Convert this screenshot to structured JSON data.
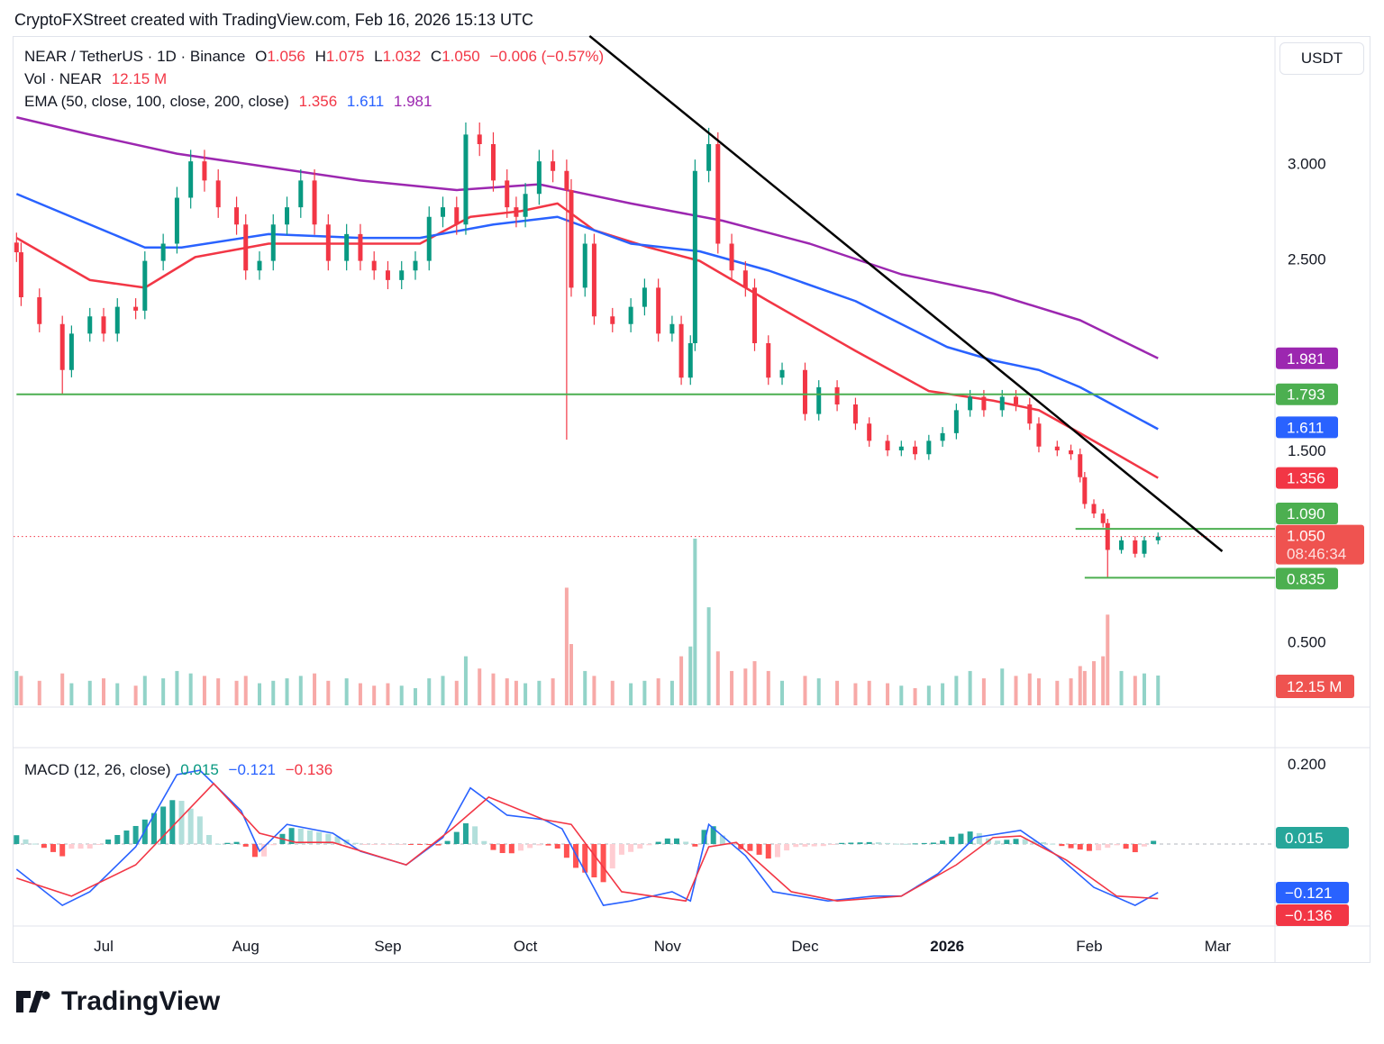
{
  "header": "CryptoFXStreet created with TradingView.com, Feb 16, 2026 15:13 UTC",
  "legend": {
    "symbol": "NEAR / TetherUS · 1D · Binance",
    "o_label": "O",
    "o": "1.056",
    "h_label": "H",
    "h": "1.075",
    "l_label": "L",
    "l": "1.032",
    "c_label": "C",
    "c": "1.050",
    "change": "−0.006 (−0.57%)",
    "vol_label": "Vol · NEAR",
    "vol": "12.15 M",
    "ema_label": "EMA (50, close, 100, close, 200, close)",
    "ema50": "1.356",
    "ema100": "1.611",
    "ema200": "1.981",
    "macd_label": "MACD (12, 26, close)",
    "macd_hist": "0.015",
    "macd_line": "−0.121",
    "macd_signal": "−0.136"
  },
  "currency_button": "USDT",
  "brand": "TradingView",
  "colors": {
    "up": "#089981",
    "down": "#f23645",
    "ema50": "#f23645",
    "ema100": "#2962ff",
    "ema200": "#9c27b0",
    "level": "#4caf50",
    "trendline": "#000000",
    "vol_up": "#92d3c8",
    "vol_down": "#f7a9a7"
  },
  "chart_data": {
    "type": "candlestick",
    "price_scale": "linear",
    "price_ticks": [
      "3.000",
      "2.500",
      "1.500",
      "0.500"
    ],
    "ylim": [
      0.2,
      3.8
    ],
    "time_ticks": [
      [
        "2025-07-01",
        "Jul"
      ],
      [
        "2025-08-01",
        "Aug"
      ],
      [
        "2025-09-01",
        "Sep"
      ],
      [
        "2025-10-01",
        "Oct"
      ],
      [
        "2025-11-01",
        "Nov"
      ],
      [
        "2025-12-01",
        "Dec"
      ],
      [
        "2026-01-01",
        "2026"
      ],
      [
        "2026-02-01",
        "Feb"
      ],
      [
        "2026-03-01",
        "Mar"
      ]
    ],
    "candles_columns": [
      "date",
      "close",
      "volume_M",
      "wick_extreme"
    ],
    "candles": [
      [
        "2025-06-12",
        2.535,
        14
      ],
      [
        "2025-06-13",
        2.3,
        12
      ],
      [
        "2025-06-17",
        2.16,
        10
      ],
      [
        "2025-06-22",
        1.92,
        13,
        1.793
      ],
      [
        "2025-06-24",
        2.11,
        9
      ],
      [
        "2025-06-28",
        2.2,
        10
      ],
      [
        "2025-07-01",
        2.11,
        11
      ],
      [
        "2025-07-04",
        2.25,
        9
      ],
      [
        "2025-07-08",
        2.23,
        8
      ],
      [
        "2025-07-10",
        2.49,
        12
      ],
      [
        "2025-07-14",
        2.58,
        11
      ],
      [
        "2025-07-17",
        2.82,
        14
      ],
      [
        "2025-07-20",
        3.01,
        13
      ],
      [
        "2025-07-23",
        2.91,
        12
      ],
      [
        "2025-07-26",
        2.77,
        11
      ],
      [
        "2025-07-30",
        2.68,
        10
      ],
      [
        "2025-08-01",
        2.44,
        12
      ],
      [
        "2025-08-04",
        2.49,
        9
      ],
      [
        "2025-08-07",
        2.68,
        10
      ],
      [
        "2025-08-10",
        2.77,
        11
      ],
      [
        "2025-08-13",
        2.91,
        12
      ],
      [
        "2025-08-16",
        2.68,
        13
      ],
      [
        "2025-08-19",
        2.49,
        10
      ],
      [
        "2025-08-23",
        2.63,
        11
      ],
      [
        "2025-08-26",
        2.49,
        9
      ],
      [
        "2025-08-29",
        2.44,
        8
      ],
      [
        "2025-09-01",
        2.39,
        9
      ],
      [
        "2025-09-04",
        2.44,
        8
      ],
      [
        "2025-09-07",
        2.49,
        7
      ],
      [
        "2025-09-10",
        2.72,
        11
      ],
      [
        "2025-09-13",
        2.77,
        12
      ],
      [
        "2025-09-16",
        2.68,
        10
      ],
      [
        "2025-09-18",
        3.15,
        20
      ],
      [
        "2025-09-21",
        3.1,
        15
      ],
      [
        "2025-09-24",
        2.91,
        13
      ],
      [
        "2025-09-27",
        2.77,
        11
      ],
      [
        "2025-09-29",
        2.72,
        10
      ],
      [
        "2025-10-01",
        2.84,
        9
      ],
      [
        "2025-10-04",
        3.01,
        10
      ],
      [
        "2025-10-07",
        2.96,
        11
      ],
      [
        "2025-10-10",
        2.86,
        48,
        1.556
      ],
      [
        "2025-10-11",
        2.35,
        25
      ],
      [
        "2025-10-14",
        2.58,
        14
      ],
      [
        "2025-10-16",
        2.2,
        12
      ],
      [
        "2025-10-20",
        2.16,
        10
      ],
      [
        "2025-10-24",
        2.25,
        9
      ],
      [
        "2025-10-27",
        2.35,
        10
      ],
      [
        "2025-10-30",
        2.11,
        11
      ],
      [
        "2025-11-02",
        2.16,
        10
      ],
      [
        "2025-11-04",
        1.88,
        20
      ],
      [
        "2025-11-06",
        2.06,
        24
      ],
      [
        "2025-11-07",
        2.96,
        68
      ],
      [
        "2025-11-10",
        3.1,
        40,
        3.185
      ],
      [
        "2025-11-12",
        2.58,
        22
      ],
      [
        "2025-11-15",
        2.44,
        14
      ],
      [
        "2025-11-18",
        2.35,
        15
      ],
      [
        "2025-11-20",
        2.06,
        18
      ],
      [
        "2025-11-23",
        1.88,
        14
      ],
      [
        "2025-11-26",
        1.92,
        10
      ],
      [
        "2025-12-01",
        1.69,
        12
      ],
      [
        "2025-12-04",
        1.83,
        11
      ],
      [
        "2025-12-08",
        1.74,
        10
      ],
      [
        "2025-12-12",
        1.64,
        9
      ],
      [
        "2025-12-15",
        1.55,
        10
      ],
      [
        "2025-12-19",
        1.5,
        9
      ],
      [
        "2025-12-22",
        1.52,
        8
      ],
      [
        "2025-12-25",
        1.48,
        7
      ],
      [
        "2025-12-28",
        1.55,
        8
      ],
      [
        "2025-12-31",
        1.59,
        9
      ],
      [
        "2026-01-03",
        1.71,
        12
      ],
      [
        "2026-01-06",
        1.78,
        14
      ],
      [
        "2026-01-09",
        1.71,
        11
      ],
      [
        "2026-01-13",
        1.78,
        15
      ],
      [
        "2026-01-16",
        1.74,
        12
      ],
      [
        "2026-01-19",
        1.64,
        13
      ],
      [
        "2026-01-21",
        1.52,
        11
      ],
      [
        "2026-01-25",
        1.5,
        10
      ],
      [
        "2026-01-28",
        1.48,
        11
      ],
      [
        "2026-01-30",
        1.36,
        16
      ],
      [
        "2026-01-31",
        1.22,
        14
      ],
      [
        "2026-02-02",
        1.17,
        18
      ],
      [
        "2026-02-04",
        1.12,
        20
      ],
      [
        "2026-02-05",
        0.98,
        37,
        0.835
      ],
      [
        "2026-02-08",
        1.03,
        14
      ],
      [
        "2026-02-11",
        0.96,
        12
      ],
      [
        "2026-02-13",
        1.03,
        13
      ],
      [
        "2026-02-16",
        1.05,
        12.15
      ]
    ],
    "ema_series": [
      {
        "name": "EMA 50",
        "color": "#f23645",
        "points": [
          [
            "2025-06-12",
            2.61
          ],
          [
            "2025-06-28",
            2.39
          ],
          [
            "2025-07-10",
            2.35
          ],
          [
            "2025-07-21",
            2.51
          ],
          [
            "2025-08-06",
            2.58
          ],
          [
            "2025-08-26",
            2.58
          ],
          [
            "2025-09-08",
            2.58
          ],
          [
            "2025-09-19",
            2.72
          ],
          [
            "2025-09-30",
            2.75
          ],
          [
            "2025-10-08",
            2.79
          ],
          [
            "2025-10-16",
            2.65
          ],
          [
            "2025-10-28",
            2.56
          ],
          [
            "2025-11-08",
            2.49
          ],
          [
            "2025-11-23",
            2.28
          ],
          [
            "2025-12-12",
            2.02
          ],
          [
            "2025-12-28",
            1.81
          ],
          [
            "2026-01-11",
            1.76
          ],
          [
            "2026-01-21",
            1.71
          ],
          [
            "2026-01-30",
            1.59
          ],
          [
            "2026-02-16",
            1.356
          ]
        ]
      },
      {
        "name": "EMA 100",
        "color": "#2962ff",
        "points": [
          [
            "2025-06-12",
            2.84
          ],
          [
            "2025-06-28",
            2.68
          ],
          [
            "2025-07-10",
            2.56
          ],
          [
            "2025-07-18",
            2.56
          ],
          [
            "2025-08-06",
            2.63
          ],
          [
            "2025-08-26",
            2.61
          ],
          [
            "2025-09-08",
            2.61
          ],
          [
            "2025-09-24",
            2.68
          ],
          [
            "2025-10-08",
            2.72
          ],
          [
            "2025-10-24",
            2.58
          ],
          [
            "2025-11-08",
            2.54
          ],
          [
            "2025-11-23",
            2.44
          ],
          [
            "2025-12-12",
            2.28
          ],
          [
            "2026-01-01",
            2.04
          ],
          [
            "2026-01-11",
            1.97
          ],
          [
            "2026-01-21",
            1.92
          ],
          [
            "2026-01-30",
            1.83
          ],
          [
            "2026-02-16",
            1.611
          ]
        ]
      },
      {
        "name": "EMA 200",
        "color": "#9c27b0",
        "points": [
          [
            "2025-06-12",
            3.24
          ],
          [
            "2025-06-28",
            3.15
          ],
          [
            "2025-07-17",
            3.05
          ],
          [
            "2025-08-06",
            2.98
          ],
          [
            "2025-08-26",
            2.91
          ],
          [
            "2025-09-16",
            2.86
          ],
          [
            "2025-10-04",
            2.89
          ],
          [
            "2025-10-24",
            2.79
          ],
          [
            "2025-11-13",
            2.7
          ],
          [
            "2025-12-02",
            2.58
          ],
          [
            "2025-12-22",
            2.42
          ],
          [
            "2026-01-11",
            2.32
          ],
          [
            "2026-01-30",
            2.18
          ],
          [
            "2026-02-16",
            1.981
          ]
        ]
      }
    ],
    "horizontal_levels": [
      {
        "price": 1.793,
        "from": "2025-06-12",
        "label": "1.793"
      },
      {
        "price": 1.09,
        "from": "2026-01-29",
        "label": "1.090"
      },
      {
        "price": 0.835,
        "from": "2026-01-31",
        "label": "0.835"
      }
    ],
    "trendline": [
      [
        "2025-10-15",
        3.665
      ],
      [
        "2026-03-02",
        0.973
      ]
    ],
    "last_price": {
      "price": 1.05,
      "label": "1.050",
      "countdown": "08:46:34"
    },
    "volume_label": "12.15 M",
    "macd": {
      "ticks": [
        "0.200"
      ],
      "ylim": [
        -0.2,
        0.24
      ],
      "macd_line": [
        [
          "2025-06-12",
          -0.063
        ],
        [
          "2025-06-22",
          -0.153
        ],
        [
          "2025-06-28",
          -0.119
        ],
        [
          "2025-07-08",
          -0.007
        ],
        [
          "2025-07-17",
          0.173
        ],
        [
          "2025-07-22",
          0.184
        ],
        [
          "2025-07-31",
          0.083
        ],
        [
          "2025-08-04",
          -0.018
        ],
        [
          "2025-08-10",
          0.049
        ],
        [
          "2025-08-20",
          0.027
        ],
        [
          "2025-08-26",
          -0.018
        ],
        [
          "2025-09-05",
          -0.052
        ],
        [
          "2025-09-13",
          0.016
        ],
        [
          "2025-09-19",
          0.14
        ],
        [
          "2025-09-27",
          0.072
        ],
        [
          "2025-10-05",
          0.061
        ],
        [
          "2025-10-09",
          0.038
        ],
        [
          "2025-10-18",
          -0.153
        ],
        [
          "2025-10-24",
          -0.142
        ],
        [
          "2025-11-02",
          -0.119
        ],
        [
          "2025-11-06",
          -0.142
        ],
        [
          "2025-11-10",
          0.049
        ],
        [
          "2025-11-18",
          -0.029
        ],
        [
          "2025-11-24",
          -0.119
        ],
        [
          "2025-12-06",
          -0.142
        ],
        [
          "2025-12-16",
          -0.13
        ],
        [
          "2025-12-22",
          -0.13
        ],
        [
          "2025-12-30",
          -0.074
        ],
        [
          "2026-01-07",
          0.016
        ],
        [
          "2026-01-17",
          0.034
        ],
        [
          "2026-01-25",
          -0.029
        ],
        [
          "2026-02-02",
          -0.108
        ],
        [
          "2026-02-11",
          -0.153
        ],
        [
          "2026-02-16",
          -0.121
        ]
      ],
      "signal_line": [
        [
          "2025-06-12",
          -0.085
        ],
        [
          "2025-06-24",
          -0.13
        ],
        [
          "2025-07-08",
          -0.052
        ],
        [
          "2025-07-25",
          0.151
        ],
        [
          "2025-08-04",
          0.027
        ],
        [
          "2025-08-12",
          0.004
        ],
        [
          "2025-08-20",
          0.004
        ],
        [
          "2025-09-05",
          -0.052
        ],
        [
          "2025-09-15",
          0.038
        ],
        [
          "2025-09-23",
          0.117
        ],
        [
          "2025-10-05",
          0.061
        ],
        [
          "2025-10-11",
          0.049
        ],
        [
          "2025-10-22",
          -0.119
        ],
        [
          "2025-11-05",
          -0.142
        ],
        [
          "2025-11-10",
          -0.007
        ],
        [
          "2025-11-16",
          0.004
        ],
        [
          "2025-11-28",
          -0.119
        ],
        [
          "2025-12-08",
          -0.142
        ],
        [
          "2025-12-22",
          -0.13
        ],
        [
          "2026-01-03",
          -0.052
        ],
        [
          "2026-01-11",
          0.016
        ],
        [
          "2026-01-17",
          0.02
        ],
        [
          "2026-01-27",
          -0.04
        ],
        [
          "2026-02-07",
          -0.13
        ],
        [
          "2026-02-16",
          -0.136
        ]
      ]
    }
  }
}
